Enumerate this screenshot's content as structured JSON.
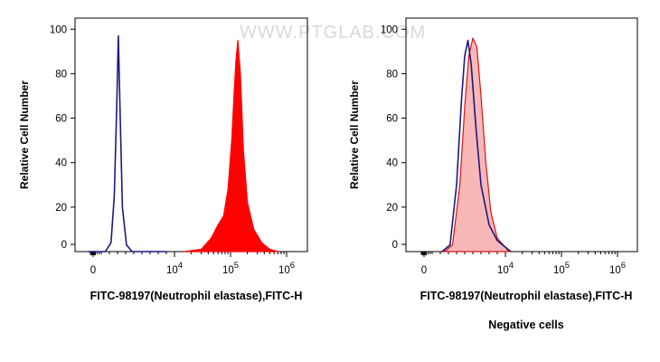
{
  "watermark": "WWW.PTGLAB.COM",
  "chart_data": [
    {
      "type": "area",
      "title": "",
      "xlabel": "FITC-98197(Neutrophil elastase),FITC-H",
      "ylabel": "Relative Cell Number",
      "subtitle": "",
      "x_scale": "biexponential",
      "ylim": [
        0,
        105
      ],
      "y_ticks": [
        "0",
        "20",
        "40",
        "60",
        "80",
        "100"
      ],
      "x_ticks": [
        {
          "base": "0",
          "exp": "",
          "value": 0
        },
        {
          "base": "10",
          "exp": "4",
          "value": 10000
        },
        {
          "base": "10",
          "exp": "5",
          "value": 100000
        },
        {
          "base": "10",
          "exp": "6",
          "value": 1000000
        }
      ],
      "series": [
        {
          "style": "line",
          "color": "#1a1a80",
          "points": [
            [
              -1800,
              0
            ],
            [
              1500,
              0
            ],
            [
              2200,
              4
            ],
            [
              2600,
              25
            ],
            [
              2900,
              65
            ],
            [
              3100,
              97
            ],
            [
              3300,
              65
            ],
            [
              3600,
              20
            ],
            [
              4100,
              3
            ],
            [
              4800,
              0
            ],
            [
              9000,
              0
            ]
          ]
        },
        {
          "style": "filled",
          "color": "#ff0000",
          "points": [
            [
              15000,
              0
            ],
            [
              30000,
              1
            ],
            [
              45000,
              6
            ],
            [
              60000,
              12
            ],
            [
              75000,
              16
            ],
            [
              90000,
              28
            ],
            [
              105000,
              50
            ],
            [
              115000,
              70
            ],
            [
              125000,
              86
            ],
            [
              135000,
              95
            ],
            [
              150000,
              80
            ],
            [
              170000,
              45
            ],
            [
              200000,
              22
            ],
            [
              260000,
              10
            ],
            [
              360000,
              4
            ],
            [
              500000,
              1
            ],
            [
              700000,
              0
            ]
          ]
        }
      ]
    },
    {
      "type": "area",
      "title": "",
      "xlabel": "FITC-98197(Neutrophil elastase),FITC-H",
      "ylabel": "Relative Cell Number",
      "subtitle": "Negative cells",
      "x_scale": "biexponential",
      "ylim": [
        0,
        105
      ],
      "y_ticks": [
        "0",
        "20",
        "40",
        "60",
        "80",
        "100"
      ],
      "x_ticks": [
        {
          "base": "0",
          "exp": "",
          "value": 0
        },
        {
          "base": "10",
          "exp": "4",
          "value": 10000
        },
        {
          "base": "10",
          "exp": "5",
          "value": 100000
        },
        {
          "base": "10",
          "exp": "6",
          "value": 1000000
        }
      ],
      "series": [
        {
          "style": "filled",
          "color": "#f8b8b8",
          "stroke": "#e01010",
          "points": [
            [
              2500,
              0
            ],
            [
              3500,
              3
            ],
            [
              4400,
              30
            ],
            [
              5000,
              65
            ],
            [
              5500,
              88
            ],
            [
              6000,
              96
            ],
            [
              6500,
              92
            ],
            [
              7000,
              70
            ],
            [
              7600,
              40
            ],
            [
              8200,
              18
            ],
            [
              9000,
              6
            ],
            [
              10000,
              2
            ],
            [
              11500,
              0
            ]
          ]
        },
        {
          "style": "line",
          "color": "#1a1a80",
          "points": [
            [
              2200,
              0
            ],
            [
              3200,
              3
            ],
            [
              4000,
              30
            ],
            [
              4600,
              68
            ],
            [
              5000,
              88
            ],
            [
              5400,
              95
            ],
            [
              5800,
              84
            ],
            [
              6400,
              55
            ],
            [
              7000,
              30
            ],
            [
              8000,
              12
            ],
            [
              9000,
              5
            ],
            [
              10000,
              2
            ],
            [
              12500,
              0
            ]
          ]
        }
      ]
    }
  ]
}
